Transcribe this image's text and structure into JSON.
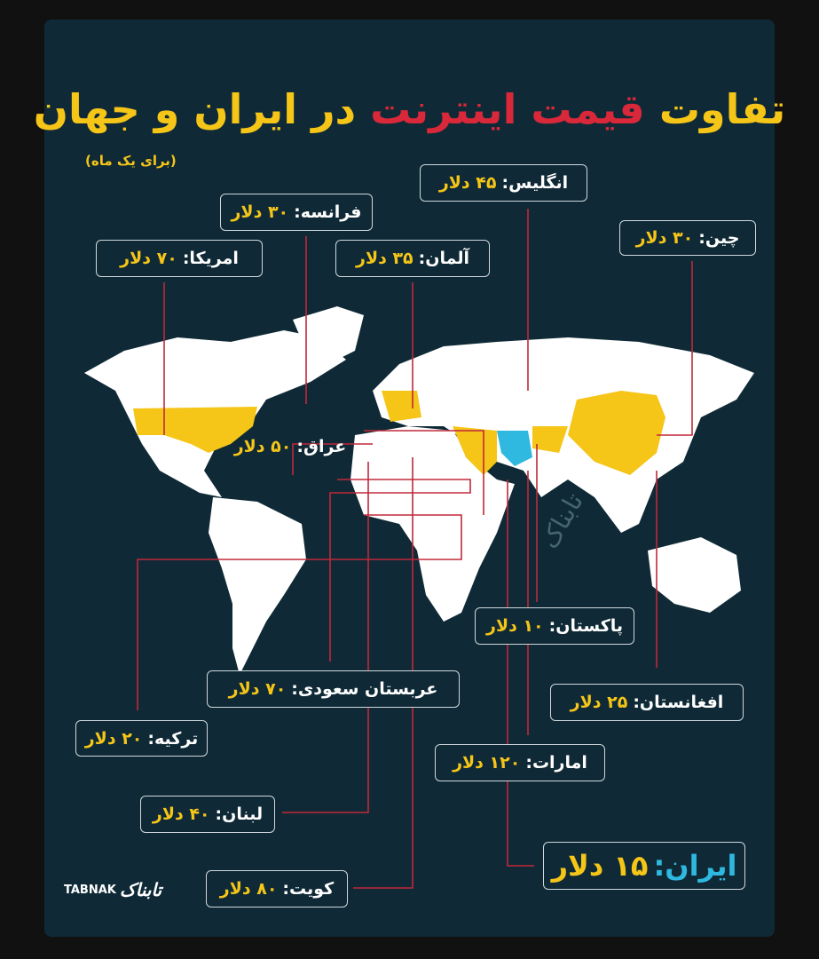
{
  "title": {
    "part1": "تفاوت",
    "part2": "قیمت اینترنت",
    "part3": "در ایران و جهان"
  },
  "subtitle": "(برای یک ماه)",
  "countries": [
    {
      "name": "انگلیس:",
      "price": "۴۵ دلار"
    },
    {
      "name": "فرانسه:",
      "price": "۳۰ دلار"
    },
    {
      "name": "امریکا:",
      "price": "۷۰ دلار"
    },
    {
      "name": "آلمان:",
      "price": "۳۵ دلار"
    },
    {
      "name": "چین:",
      "price": "۳۰ دلار"
    },
    {
      "name": "عراق:",
      "price": "۵۰ دلار"
    },
    {
      "name": "پاکستان:",
      "price": "۱۰ دلار"
    },
    {
      "name": "افغانستان:",
      "price": "۲۵ دلار"
    },
    {
      "name": "عربستان سعودی:",
      "price": "۷۰ دلار"
    },
    {
      "name": "ترکیه:",
      "price": "۲۰ دلار"
    },
    {
      "name": "امارات:",
      "price": "۱۲۰ دلار"
    },
    {
      "name": "لبنان:",
      "price": "۴۰ دلار"
    },
    {
      "name": "ایران:",
      "price": "۱۵ دلار"
    },
    {
      "name": "کویت:",
      "price": "۸۰ دلار"
    }
  ],
  "watermark": "تابناک",
  "logo": {
    "latin": "TABNAK",
    "persian": "تابناک"
  },
  "colors": {
    "background": "#0f2a36",
    "highlight": "#f5c518",
    "iran": "#2fb8e0",
    "arrow": "#c0283a",
    "land": "#ffffff"
  }
}
